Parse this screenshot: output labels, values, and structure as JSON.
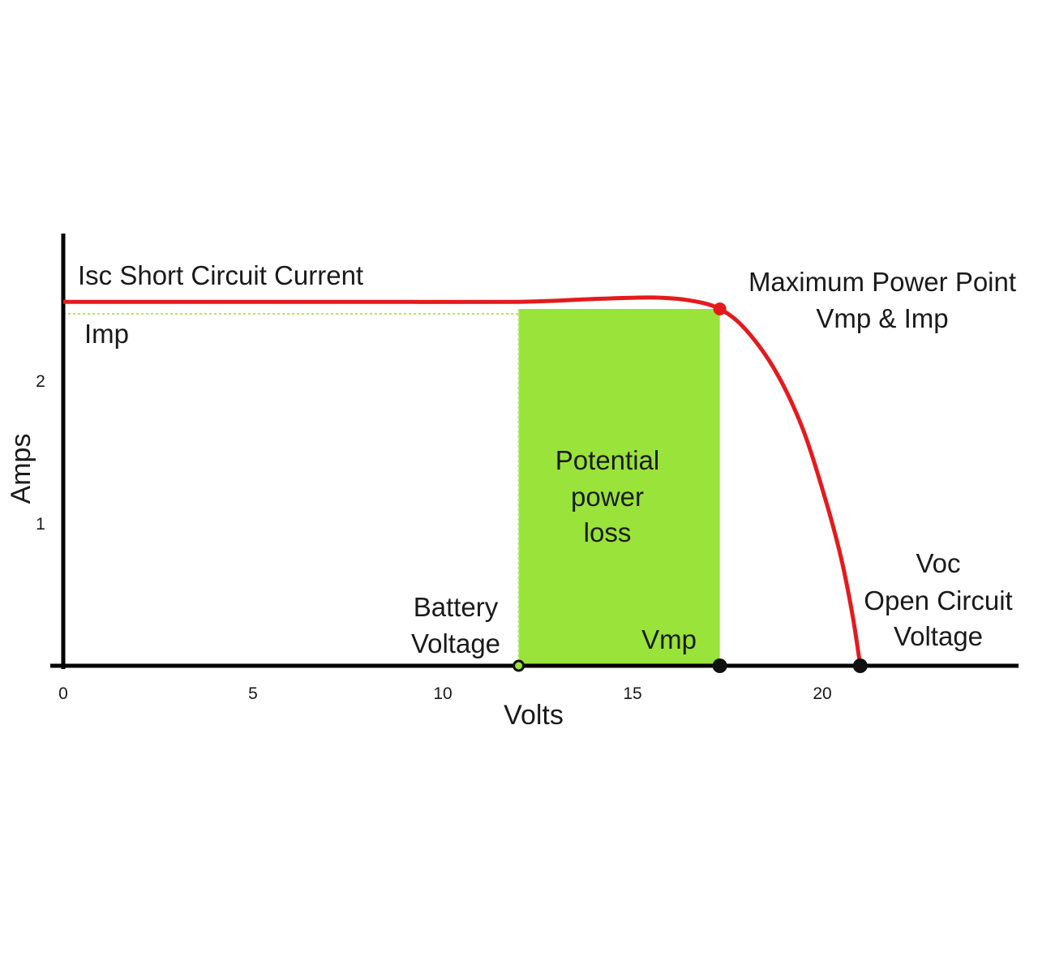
{
  "colors": {
    "curve": "#e41a1c",
    "region": "#99e33a",
    "guide": "#b9e36a",
    "axis": "#000000",
    "point": "#111111"
  },
  "chart_data": {
    "type": "line",
    "title": "",
    "xlabel": "Volts",
    "ylabel": "Amps",
    "xlim": [
      0,
      25
    ],
    "ylim": [
      0,
      3
    ],
    "x_ticks": [
      0,
      5,
      10,
      15,
      20
    ],
    "y_ticks": [
      1,
      2
    ],
    "grid": false,
    "series": [
      {
        "x": [
          0,
          4,
          8,
          12,
          14,
          15.5,
          16.5,
          17.3,
          18,
          18.8,
          19.5,
          20.1,
          20.5,
          20.8,
          21.0
        ],
        "y": [
          2.55,
          2.55,
          2.55,
          2.55,
          2.57,
          2.58,
          2.56,
          2.5,
          2.35,
          2.05,
          1.65,
          1.15,
          0.75,
          0.35,
          0
        ]
      }
    ],
    "region": {
      "x_start": 12,
      "x_end": 17.3,
      "y_top": 2.5
    },
    "imp_line": {
      "y": 2.5
    },
    "points": [
      {
        "x": 12,
        "y": 0,
        "style": "open"
      },
      {
        "x": 17.3,
        "y": 0,
        "style": "filled"
      },
      {
        "x": 21.0,
        "y": 0,
        "style": "filled"
      },
      {
        "x": 17.3,
        "y": 2.5,
        "style": "red"
      }
    ],
    "annotations": {
      "isc": "Isc  Short Circuit Current",
      "imp": "Imp",
      "mpp_line1": "Maximum Power Point",
      "mpp_line2": "Vmp & Imp",
      "region_line1": "Potential",
      "region_line2": "power",
      "region_line3": "loss",
      "battery_line1": "Battery",
      "battery_line2": "Voltage",
      "vmp": "Vmp",
      "voc_line1": "Voc",
      "voc_line2": "Open Circuit",
      "voc_line3": "Voltage"
    }
  }
}
